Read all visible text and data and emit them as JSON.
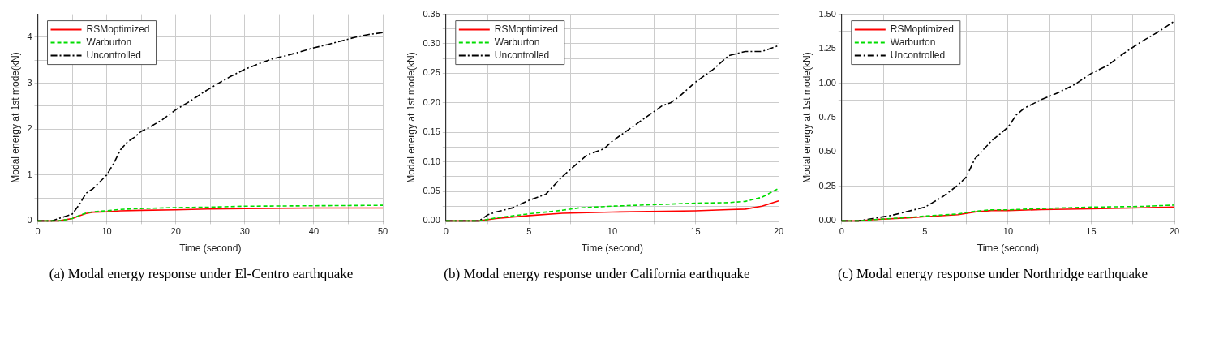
{
  "chart_data": [
    {
      "type": "line",
      "title": "(a) Modal energy response under El-Centro earthquake",
      "xlabel": "Time (second)",
      "ylabel": "Modal energy at 1st mode(kN)",
      "xlim": [
        0,
        50
      ],
      "ylim": [
        0,
        4.5
      ],
      "xticks": [
        0,
        {
          "value": 5,
          "label": null
        },
        10,
        {
          "value": 15,
          "label": null
        },
        20,
        {
          "value": 25,
          "label": null
        },
        30,
        {
          "value": 35,
          "label": null
        },
        40,
        {
          "value": 45,
          "label": null
        },
        50
      ],
      "yticks": [
        0,
        {
          "value": 0.5,
          "label": null
        },
        1,
        {
          "value": 1.5,
          "label": null
        },
        2,
        {
          "value": 2.5,
          "label": null
        },
        3,
        {
          "value": 3.5,
          "label": null
        },
        4
      ],
      "grid": true,
      "legend": "top left",
      "series": [
        {
          "name": "RSMoptimized",
          "color": "#ff0000",
          "line_style": "solid",
          "x": [
            0,
            3,
            5,
            6,
            7,
            8,
            10,
            12,
            15,
            20,
            25,
            30,
            40,
            50
          ],
          "values": [
            0,
            0,
            0.05,
            0.11,
            0.16,
            0.19,
            0.2,
            0.22,
            0.23,
            0.24,
            0.26,
            0.27,
            0.28,
            0.28
          ]
        },
        {
          "name": "Warburton",
          "color": "#00dd00",
          "line_style": "dashed",
          "x": [
            0,
            3,
            5,
            6,
            7,
            8,
            10,
            12,
            15,
            20,
            25,
            30,
            40,
            50
          ],
          "values": [
            0,
            0,
            0.05,
            0.12,
            0.17,
            0.2,
            0.22,
            0.25,
            0.27,
            0.29,
            0.3,
            0.32,
            0.33,
            0.34
          ]
        },
        {
          "name": "Uncontrolled",
          "color": "#000000",
          "line_style": "dashdot",
          "x": [
            0,
            2,
            3,
            5,
            6,
            7,
            8,
            9,
            10,
            11,
            12,
            13,
            14,
            15,
            16,
            18,
            20,
            22,
            24,
            26,
            28,
            30,
            32,
            34,
            36,
            38,
            40,
            42,
            44,
            46,
            48,
            50
          ],
          "values": [
            0,
            0,
            0.05,
            0.15,
            0.35,
            0.6,
            0.7,
            0.85,
            1.0,
            1.25,
            1.55,
            1.72,
            1.82,
            1.95,
            2.02,
            2.2,
            2.42,
            2.6,
            2.8,
            2.98,
            3.15,
            3.3,
            3.42,
            3.53,
            3.6,
            3.68,
            3.77,
            3.84,
            3.92,
            4.0,
            4.06,
            4.1
          ]
        }
      ]
    },
    {
      "type": "line",
      "title": "(b) Modal energy response under California earthquake",
      "xlabel": "Time (second)",
      "ylabel": "Modal energy at 1st mode(kN)",
      "xlim": [
        0,
        20
      ],
      "ylim": [
        0,
        0.35
      ],
      "xticks": [
        0,
        {
          "value": 2.5,
          "label": null
        },
        5,
        {
          "value": 7.5,
          "label": null
        },
        10,
        {
          "value": 12.5,
          "label": null
        },
        15,
        {
          "value": 17.5,
          "label": null
        },
        20
      ],
      "yticks": [
        {
          "value": 0,
          "label": "0.00"
        },
        {
          "value": 0.025,
          "label": null
        },
        {
          "value": 0.05,
          "label": "0.05"
        },
        {
          "value": 0.075,
          "label": null
        },
        {
          "value": 0.1,
          "label": "0.10"
        },
        {
          "value": 0.125,
          "label": null
        },
        {
          "value": 0.15,
          "label": "0.15"
        },
        {
          "value": 0.175,
          "label": null
        },
        {
          "value": 0.2,
          "label": "0.20"
        },
        {
          "value": 0.225,
          "label": null
        },
        {
          "value": 0.25,
          "label": "0.25"
        },
        {
          "value": 0.275,
          "label": null
        },
        {
          "value": 0.3,
          "label": "0.30"
        },
        {
          "value": 0.325,
          "label": null
        },
        {
          "value": 0.35,
          "label": "0.35"
        }
      ],
      "grid": true,
      "legend": "top left",
      "series": [
        {
          "name": "RSMoptimized",
          "color": "#ff0000",
          "line_style": "solid",
          "x": [
            0,
            2,
            3,
            5,
            7,
            10,
            15,
            17,
            18,
            19,
            20
          ],
          "values": [
            0,
            0,
            0.004,
            0.009,
            0.013,
            0.015,
            0.017,
            0.019,
            0.02,
            0.025,
            0.034
          ]
        },
        {
          "name": "Warburton",
          "color": "#00dd00",
          "line_style": "dashed",
          "x": [
            0,
            2,
            3,
            5,
            7,
            8,
            10,
            12,
            15,
            17,
            18,
            19,
            20
          ],
          "values": [
            0,
            0,
            0.005,
            0.012,
            0.018,
            0.022,
            0.025,
            0.027,
            0.03,
            0.031,
            0.033,
            0.04,
            0.055
          ]
        },
        {
          "name": "Uncontrolled",
          "color": "#000000",
          "line_style": "dashdot",
          "x": [
            0,
            2,
            2.5,
            3,
            4,
            5,
            6,
            7,
            8,
            8.5,
            9.5,
            10,
            11,
            12,
            13,
            13.5,
            14,
            15,
            16,
            17,
            18,
            19,
            20
          ],
          "values": [
            0,
            0,
            0.01,
            0.015,
            0.022,
            0.035,
            0.045,
            0.075,
            0.1,
            0.112,
            0.122,
            0.135,
            0.155,
            0.175,
            0.195,
            0.2,
            0.21,
            0.235,
            0.255,
            0.28,
            0.287,
            0.287,
            0.297
          ]
        }
      ]
    },
    {
      "type": "line",
      "title": "(c) Modal energy response under Northridge earthquake",
      "xlabel": "Time (second)",
      "ylabel": "Modal energy at 1st mode(kN)",
      "xlim": [
        0,
        20
      ],
      "ylim": [
        0,
        1.5
      ],
      "xticks": [
        0,
        {
          "value": 2.5,
          "label": null
        },
        5,
        {
          "value": 7.5,
          "label": null
        },
        10,
        {
          "value": 12.5,
          "label": null
        },
        15,
        {
          "value": 17.5,
          "label": null
        },
        20
      ],
      "yticks": [
        {
          "value": 0,
          "label": "0.00"
        },
        {
          "value": 0.125,
          "label": null
        },
        {
          "value": 0.25,
          "label": "0.25"
        },
        {
          "value": 0.375,
          "label": null
        },
        {
          "value": 0.5,
          "label": "0.50"
        },
        {
          "value": 0.625,
          "label": null
        },
        {
          "value": 0.75,
          "label": "0.75"
        },
        {
          "value": 0.875,
          "label": null
        },
        {
          "value": 1,
          "label": "1.00"
        },
        {
          "value": 1.125,
          "label": null
        },
        {
          "value": 1.25,
          "label": "1.25"
        },
        {
          "value": 1.375,
          "label": null
        },
        {
          "value": 1.5,
          "label": "1.50"
        }
      ],
      "grid": true,
      "legend": "top left",
      "series": [
        {
          "name": "RSMoptimized",
          "color": "#ff0000",
          "line_style": "solid",
          "x": [
            0,
            1,
            2,
            4,
            5,
            7,
            8,
            9,
            10,
            12,
            15,
            18,
            20
          ],
          "values": [
            0,
            0,
            0.01,
            0.022,
            0.03,
            0.045,
            0.065,
            0.075,
            0.075,
            0.082,
            0.088,
            0.095,
            0.1
          ]
        },
        {
          "name": "Warburton",
          "color": "#00dd00",
          "line_style": "dashed",
          "x": [
            0,
            1,
            2,
            4,
            5,
            7,
            8,
            9,
            10,
            12,
            15,
            18,
            20
          ],
          "values": [
            0,
            0,
            0.01,
            0.025,
            0.035,
            0.05,
            0.07,
            0.08,
            0.08,
            0.09,
            0.1,
            0.105,
            0.115
          ]
        },
        {
          "name": "Uncontrolled",
          "color": "#000000",
          "line_style": "dashdot",
          "x": [
            0,
            1,
            2,
            3,
            4,
            5,
            6,
            7,
            7.5,
            8,
            9,
            10,
            10.5,
            11,
            12,
            13,
            14,
            15,
            16,
            17,
            18,
            19,
            20
          ],
          "values": [
            0,
            0,
            0.02,
            0.04,
            0.07,
            0.1,
            0.17,
            0.26,
            0.32,
            0.45,
            0.58,
            0.68,
            0.77,
            0.82,
            0.88,
            0.93,
            0.99,
            1.07,
            1.13,
            1.22,
            1.3,
            1.37,
            1.45
          ]
        }
      ]
    }
  ]
}
